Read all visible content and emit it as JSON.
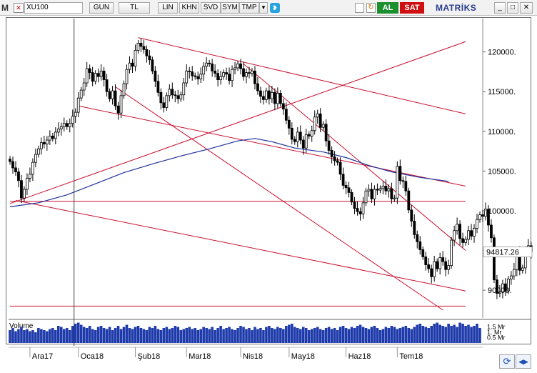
{
  "toolbar": {
    "app_icon": "M",
    "close_glyph": "✕",
    "symbol": "XU100",
    "period": "GUN",
    "currency": "TL",
    "buttons": [
      "LIN",
      "KHN",
      "SVD",
      "SYM",
      "TMP"
    ],
    "dropdown_glyph": "▼",
    "bird_icon": "bird-icon",
    "al_label": "AL",
    "sat_label": "SAT",
    "brand": "MATRİKS",
    "window_buttons": [
      "_",
      "□",
      "✕"
    ],
    "colors": {
      "al": "#1c8f2e",
      "sat": "#d01010"
    }
  },
  "chart_data": {
    "type": "candlestick",
    "symbol": "XU100",
    "ylim": [
      86500,
      124200
    ],
    "y_ticks": [
      90000,
      95000,
      100000,
      105000,
      110000,
      115000,
      120000
    ],
    "y_tick_labels": [
      "90000.",
      "94817.26",
      "100000.",
      "105000.",
      "110000.",
      "115000.",
      "120000."
    ],
    "last_price": 94817.26,
    "last_price_label": "94817.26",
    "x_labels": [
      "Ara17",
      "Oca18",
      "Şub18",
      "Mar18",
      "Nis18",
      "May18",
      "Haz18",
      "Tem18"
    ],
    "n_bars": 155,
    "x_label_bars": [
      7,
      24,
      44,
      62,
      81,
      98,
      118,
      136
    ],
    "close": [
      106200,
      105400,
      104900,
      103800,
      101600,
      102700,
      104100,
      104600,
      106100,
      107100,
      107800,
      108600,
      108400,
      108900,
      109400,
      109100,
      109900,
      110300,
      110600,
      111000,
      110600,
      111000,
      111900,
      112400,
      114200,
      115200,
      116100,
      117900,
      117400,
      116300,
      117300,
      116900,
      117600,
      116500,
      115000,
      114100,
      115100,
      113200,
      112300,
      114500,
      116000,
      117800,
      118600,
      118200,
      120200,
      121100,
      120700,
      120300,
      119500,
      119000,
      117600,
      116300,
      114900,
      113600,
      113000,
      114500,
      115300,
      114600,
      114500,
      114100,
      114600,
      116100,
      117600,
      117500,
      117000,
      116900,
      116600,
      117200,
      118200,
      118600,
      118500,
      117600,
      117300,
      116500,
      116900,
      117400,
      117200,
      116400,
      117800,
      118000,
      118500,
      117900,
      116900,
      117400,
      117300,
      117600,
      116000,
      115100,
      114400,
      114000,
      115100,
      114100,
      114900,
      113500,
      114800,
      113500,
      112800,
      111400,
      110400,
      109000,
      108700,
      109900,
      108900,
      107900,
      109600,
      109400,
      110100,
      111800,
      112200,
      110500,
      110900,
      108800,
      107600,
      106800,
      106300,
      106100,
      104600,
      103200,
      102900,
      102300,
      101100,
      100300,
      99900,
      99600,
      101000,
      102500,
      102700,
      101500,
      102700,
      102600,
      102800,
      103100,
      102500,
      102800,
      101500,
      101600,
      105600,
      103800,
      103700,
      102500,
      100100,
      98700,
      97000,
      96100,
      95100,
      94200,
      93200,
      92700,
      91700,
      93600,
      92700,
      94100,
      93600,
      92600,
      93100
    ],
    "close_tail": [
      96300,
      97500,
      98300,
      96500,
      96000,
      96400,
      97500,
      96800,
      97800,
      98900,
      99500,
      99300,
      100200,
      98200,
      96600,
      91300,
      89600,
      89800,
      90800,
      89900,
      91400,
      91800,
      92600,
      94800,
      92500,
      92800,
      94900,
      95600,
      94817.26
    ],
    "ma_line": [
      [
        0,
        100500
      ],
      [
        10,
        101000
      ],
      [
        20,
        102000
      ],
      [
        30,
        103400
      ],
      [
        40,
        104800
      ],
      [
        50,
        105900
      ],
      [
        60,
        106900
      ],
      [
        70,
        107800
      ],
      [
        80,
        108800
      ],
      [
        86,
        109100
      ],
      [
        92,
        108700
      ],
      [
        100,
        107900
      ],
      [
        110,
        107400
      ],
      [
        118,
        106700
      ],
      [
        126,
        105700
      ],
      [
        134,
        104900
      ],
      [
        144,
        104200
      ],
      [
        154,
        103700
      ]
    ],
    "trendlines": [
      {
        "from": [
          45,
          121800
        ],
        "to": [
          160,
          112200
        ]
      },
      {
        "from": [
          24,
          113200
        ],
        "to": [
          160,
          103100
        ]
      },
      {
        "from": [
          0,
          100900
        ],
        "to": [
          160,
          121300
        ]
      },
      {
        "from": [
          0,
          101200
        ],
        "to": [
          160,
          101200
        ]
      },
      {
        "from": [
          2,
          101300
        ],
        "to": [
          160,
          89900
        ]
      },
      {
        "from": [
          0,
          88000
        ],
        "to": [
          160,
          88000
        ]
      },
      {
        "from": [
          37,
          115600
        ],
        "to": [
          152,
          87500
        ]
      },
      {
        "from": [
          82,
          118500
        ],
        "to": [
          160,
          95000
        ]
      }
    ],
    "cursor_bar": 24,
    "volume": {
      "title": "Volume",
      "ylim": [
        0,
        2.0
      ],
      "y_tick_labels": [
        "1.5 Mr",
        "1. Mr",
        "0.5 Mr"
      ],
      "y_ticks": [
        1.5,
        1.0,
        0.5
      ],
      "values": [
        1.2,
        1.4,
        1.1,
        1.3,
        1.5,
        1.2,
        1.3,
        1.1,
        1.2,
        1.0,
        1.4,
        1.3,
        1.2,
        1.1,
        1.3,
        1.4,
        1.2,
        1.6,
        1.5,
        1.3,
        1.4,
        1.2,
        1.6,
        1.8,
        1.9,
        1.7,
        1.5,
        1.4,
        1.6,
        1.3,
        1.2,
        1.5,
        1.6,
        1.4,
        1.3,
        1.5,
        1.2,
        1.4,
        1.6,
        1.3,
        1.5,
        1.7,
        1.4,
        1.3,
        1.5,
        1.6,
        1.4,
        1.3,
        1.2,
        1.5,
        1.4,
        1.6,
        1.3,
        1.2,
        1.4,
        1.5,
        1.3,
        1.4,
        1.6,
        1.5,
        1.2,
        1.3,
        1.4,
        1.5,
        1.3,
        1.4,
        1.2,
        1.3,
        1.5,
        1.4,
        1.3,
        1.5,
        1.2,
        1.4,
        1.6,
        1.3,
        1.4,
        1.5,
        1.3,
        1.2,
        1.4,
        1.6,
        1.5,
        1.3,
        1.4,
        1.2,
        1.5,
        1.3,
        1.4,
        1.2,
        1.5,
        1.6,
        1.4,
        1.3,
        1.5,
        1.4,
        1.3,
        1.6,
        1.7,
        1.8,
        1.5,
        1.4,
        1.3,
        1.5,
        1.4,
        1.2,
        1.3,
        1.4,
        1.5,
        1.3,
        1.2,
        1.4,
        1.5,
        1.3,
        1.4,
        1.2,
        1.5,
        1.6,
        1.4,
        1.3,
        1.5,
        1.4,
        1.6,
        1.7,
        1.5,
        1.4,
        1.3,
        1.5,
        1.6,
        1.4,
        1.2,
        1.3,
        1.5,
        1.4,
        1.6,
        1.5,
        1.3,
        1.4,
        1.5,
        1.6,
        1.4,
        1.3,
        1.5,
        1.7,
        1.8,
        1.6,
        1.5,
        1.4,
        1.6,
        1.8,
        1.9,
        1.7,
        1.6,
        1.5,
        1.8,
        1.6,
        1.7,
        1.5,
        1.9,
        1.8,
        1.6,
        1.7,
        1.5,
        1.6,
        1.8,
        1.4,
        1.7,
        1.9,
        1.6,
        1.5,
        1.7,
        1.8
      ]
    },
    "colors": {
      "up": "#ffffff",
      "down": "#000000",
      "ma": "#1f2f9a",
      "trend": "#c8102e",
      "volume": "#1f3bab",
      "grid": "#b0b0b0",
      "cursor": "#404040"
    }
  }
}
